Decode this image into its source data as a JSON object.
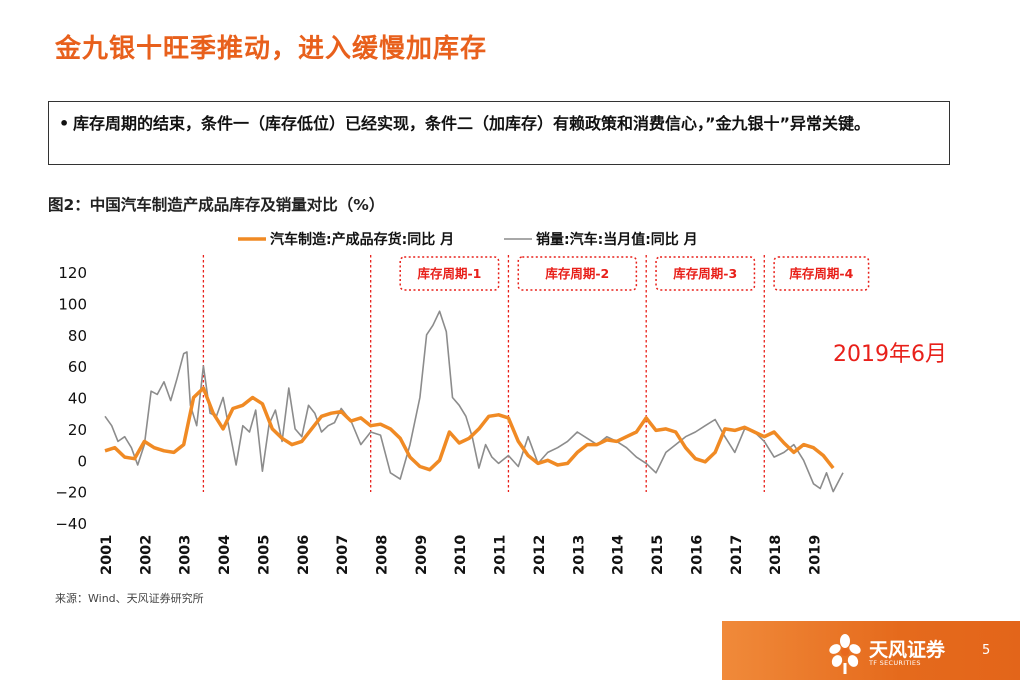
{
  "slide": {
    "title": "金九银十旺季推动，进入缓慢加库存",
    "bullet_symbol": "•",
    "bullet_text": "库存周期的结束，条件一（库存低位）已经实现，条件二（加库存）有赖政策和消费信心，”金九银十”异常关键。",
    "figure_caption": "图2：中国汽车制造产成品库存及销量对比（%）",
    "source": "来源：Wind、天风证券研究所",
    "page_number": "5"
  },
  "footer": {
    "brand_cn": "天风证券",
    "brand_en": "TF SECURITIES",
    "band_color": "#e8691f",
    "logo_icon": "flower-logo-icon"
  },
  "chart_data": {
    "type": "line",
    "title": "",
    "xlabel": "",
    "ylabel": "",
    "ylim": [
      -40,
      120
    ],
    "yticks": [
      "120",
      "100",
      "80",
      "60",
      "40",
      "20",
      "0",
      "−20",
      "−40"
    ],
    "ytick_values": [
      120,
      100,
      80,
      60,
      40,
      20,
      0,
      -20,
      -40
    ],
    "xlim": [
      2001.0,
      2019.75
    ],
    "xticks": [
      "2001",
      "2002",
      "2003",
      "2004",
      "2005",
      "2006",
      "2007",
      "2008",
      "2009",
      "2010",
      "2011",
      "2012",
      "2013",
      "2014",
      "2015",
      "2016",
      "2017",
      "2018",
      "2019"
    ],
    "legend_position": "top",
    "grid": false,
    "series": [
      {
        "name": "汽车制造:产成品存货:同比 月",
        "color": "#f08a24",
        "x": [
          2001.0,
          2001.25,
          2001.5,
          2001.75,
          2002.0,
          2002.25,
          2002.5,
          2002.75,
          2003.0,
          2003.25,
          2003.5,
          2003.75,
          2004.0,
          2004.25,
          2004.5,
          2004.75,
          2005.0,
          2005.25,
          2005.5,
          2005.75,
          2006.0,
          2006.25,
          2006.5,
          2006.75,
          2007.0,
          2007.25,
          2007.5,
          2007.75,
          2008.0,
          2008.25,
          2008.5,
          2008.75,
          2009.0,
          2009.25,
          2009.5,
          2009.75,
          2010.0,
          2010.25,
          2010.5,
          2010.75,
          2011.0,
          2011.25,
          2011.5,
          2011.75,
          2012.0,
          2012.25,
          2012.5,
          2012.75,
          2013.0,
          2013.25,
          2013.5,
          2013.75,
          2014.0,
          2014.25,
          2014.5,
          2014.75,
          2015.0,
          2015.25,
          2015.5,
          2015.75,
          2016.0,
          2016.25,
          2016.5,
          2016.75,
          2017.0,
          2017.25,
          2017.5,
          2017.75,
          2018.0,
          2018.25,
          2018.5,
          2018.75,
          2019.0,
          2019.25,
          2019.5
        ],
        "values": [
          6,
          8,
          2,
          1,
          12,
          8,
          6,
          5,
          10,
          40,
          46,
          30,
          20,
          33,
          35,
          40,
          36,
          20,
          14,
          10,
          12,
          20,
          28,
          30,
          31,
          25,
          27,
          22,
          23,
          20,
          14,
          2,
          -4,
          -6,
          0,
          18,
          11,
          14,
          20,
          28,
          29,
          27,
          12,
          3,
          -2,
          0,
          -3,
          -2,
          5,
          10,
          10,
          13,
          12,
          15,
          18,
          27,
          19,
          20,
          18,
          8,
          1,
          -1,
          5,
          20,
          19,
          21,
          18,
          15,
          18,
          11,
          5,
          10,
          8,
          3,
          -5
        ]
      },
      {
        "name": "销量:汽车:当月值:同比 月",
        "color": "#8c8c8c",
        "x": [
          2001.0,
          2001.17,
          2001.33,
          2001.5,
          2001.67,
          2001.83,
          2002.0,
          2002.17,
          2002.33,
          2002.5,
          2002.67,
          2002.83,
          2003.0,
          2003.08,
          2003.17,
          2003.33,
          2003.5,
          2003.67,
          2003.83,
          2004.0,
          2004.17,
          2004.33,
          2004.5,
          2004.67,
          2004.83,
          2005.0,
          2005.17,
          2005.33,
          2005.5,
          2005.67,
          2005.83,
          2006.0,
          2006.17,
          2006.33,
          2006.5,
          2006.67,
          2006.83,
          2007.0,
          2007.25,
          2007.5,
          2007.75,
          2008.0,
          2008.25,
          2008.5,
          2008.75,
          2009.0,
          2009.17,
          2009.33,
          2009.5,
          2009.67,
          2009.83,
          2010.0,
          2010.17,
          2010.33,
          2010.5,
          2010.67,
          2010.83,
          2011.0,
          2011.25,
          2011.5,
          2011.75,
          2012.0,
          2012.25,
          2012.5,
          2012.75,
          2013.0,
          2013.25,
          2013.5,
          2013.75,
          2014.0,
          2014.25,
          2014.5,
          2014.75,
          2015.0,
          2015.25,
          2015.5,
          2015.75,
          2016.0,
          2016.25,
          2016.5,
          2016.75,
          2017.0,
          2017.25,
          2017.5,
          2017.75,
          2018.0,
          2018.25,
          2018.5,
          2018.75,
          2019.0,
          2019.17,
          2019.33,
          2019.5,
          2019.75
        ],
        "values": [
          28,
          22,
          12,
          15,
          8,
          -3,
          10,
          44,
          42,
          50,
          38,
          52,
          68,
          69,
          35,
          22,
          60,
          30,
          28,
          40,
          18,
          -3,
          22,
          18,
          32,
          -7,
          23,
          32,
          12,
          46,
          20,
          15,
          35,
          30,
          18,
          22,
          24,
          33,
          25,
          10,
          18,
          16,
          -8,
          -12,
          10,
          40,
          80,
          86,
          95,
          82,
          40,
          35,
          28,
          15,
          -5,
          10,
          2,
          -2,
          3,
          -4,
          15,
          -2,
          5,
          8,
          12,
          18,
          14,
          10,
          15,
          12,
          8,
          2,
          -2,
          -8,
          5,
          10,
          15,
          18,
          22,
          26,
          15,
          5,
          20,
          18,
          12,
          2,
          5,
          10,
          0,
          -15,
          -18,
          -8,
          -20,
          -8
        ]
      }
    ],
    "vlines": [
      2003.5,
      2007.75,
      2011.25,
      2014.75,
      2017.75
    ],
    "cycle_labels": [
      {
        "label": "库存周期-1",
        "x_from": 2008.5,
        "x_to": 2011.0
      },
      {
        "label": "库存周期-2",
        "x_from": 2011.5,
        "x_to": 2014.5
      },
      {
        "label": "库存周期-3",
        "x_from": 2015.0,
        "x_to": 2017.5
      },
      {
        "label": "库存周期-4",
        "x_from": 2018.0,
        "x_to": 2020.4
      }
    ],
    "annotation": "2019年6月",
    "annotation_color": "#e8201a",
    "dash_color": "#e8201a"
  }
}
